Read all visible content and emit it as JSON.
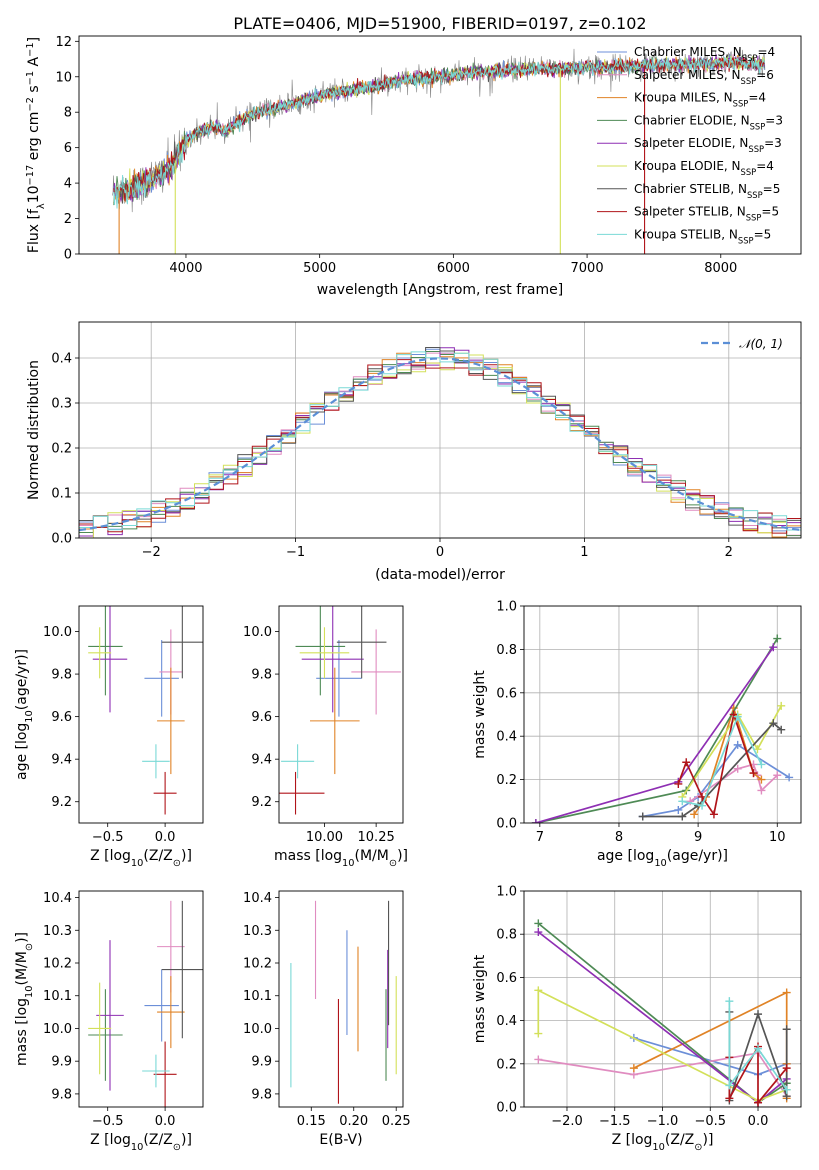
{
  "colors": {
    "Chabrier MILES": "#6c8fd8",
    "Salpeter MILES": "#e08cc0",
    "Kroupa MILES": "#e08326",
    "Chabrier ELODIE": "#4e8a55",
    "Salpeter ELODIE": "#8e2fb3",
    "Kroupa ELODIE": "#d3e05a",
    "Chabrier STELIB": "#555555",
    "Salpeter STELIB": "#b0141a",
    "Kroupa STELIB": "#7ad9d6"
  },
  "chart_data": [
    {
      "id": "spectrum",
      "type": "line",
      "title": "PLATE=0406, MJD=51900, FIBERID=0197, z=0.102",
      "xlabel": "wavelength [Angstrom, rest frame]",
      "ylabel": "Flux [f",
      "ylabel_sub": "λ",
      "ylabel_rest": "10",
      "ylabel_exp": "−17",
      "ylabel_tail": " erg cm",
      "ylabel_tail_exp": "−2",
      "ylabel_tail2": " s",
      "ylabel_tail2_exp": "−1",
      "ylabel_tail3": " A",
      "ylabel_tail3_exp": "−1",
      "ylabel_end": "]",
      "xlim": [
        3200,
        8600
      ],
      "ylim": [
        0,
        12.3
      ],
      "xticks": [
        "4000",
        "5000",
        "6000",
        "7000",
        "8000"
      ],
      "yticks": [
        "0",
        "2",
        "4",
        "6",
        "8",
        "10",
        "12"
      ],
      "data_color": "#808080",
      "continuum": {
        "x": [
          3450,
          3600,
          3700,
          3800,
          3900,
          4000,
          4100,
          4200,
          4300,
          4400,
          4500,
          4700,
          4900,
          5100,
          5300,
          5500,
          5700,
          5900,
          6100,
          6300,
          6500,
          6700,
          6900,
          7100,
          7300,
          7500,
          7700,
          7900,
          8100,
          8300
        ],
        "y": [
          3.5,
          3.7,
          4.0,
          4.5,
          5.0,
          6.4,
          6.9,
          7.2,
          6.9,
          7.5,
          7.9,
          8.3,
          8.7,
          9.1,
          9.3,
          9.6,
          9.9,
          10.0,
          10.2,
          10.3,
          10.4,
          10.45,
          10.5,
          10.55,
          10.6,
          10.65,
          10.7,
          10.75,
          10.8,
          10.7
        ]
      },
      "legend": [
        {
          "base": "Chabrier MILES, N",
          "sub": "SSP",
          "tail": "=4"
        },
        {
          "base": "Salpeter MILES, N",
          "sub": "SSP",
          "tail": "=6"
        },
        {
          "base": "Kroupa MILES, N",
          "sub": "SSP",
          "tail": "=4"
        },
        {
          "base": "Chabrier ELODIE, N",
          "sub": "SSP",
          "tail": "=3"
        },
        {
          "base": "Salpeter ELODIE, N",
          "sub": "SSP",
          "tail": "=3"
        },
        {
          "base": "Kroupa ELODIE, N",
          "sub": "SSP",
          "tail": "=4"
        },
        {
          "base": "Chabrier STELIB, N",
          "sub": "SSP",
          "tail": "=5"
        },
        {
          "base": "Salpeter STELIB, N",
          "sub": "SSP",
          "tail": "=5"
        },
        {
          "base": "Kroupa STELIB, N",
          "sub": "SSP",
          "tail": "=5"
        }
      ]
    },
    {
      "id": "residuals",
      "type": "line",
      "xlabel": "(data-model)/error",
      "ylabel": "Normed distribution",
      "xlim": [
        -2.5,
        2.5
      ],
      "ylim": [
        0,
        0.48
      ],
      "xticks": [
        "−2",
        "−1",
        "0",
        "1",
        "2"
      ],
      "yticks": [
        "0.0",
        "0.1",
        "0.2",
        "0.3",
        "0.4"
      ],
      "grid": true,
      "legend": "𝒩(0, 1)",
      "legend_position": "top-right",
      "bin_width": 0.1,
      "bins_start": -2.5,
      "gaussian_color": "#5b8fd6"
    },
    {
      "id": "age_vs_Z",
      "type": "scatter",
      "xlabel": "Z [log",
      "xlabel_sub": "10",
      "xlabel_tail": "(Z/Z",
      "xlabel_sun": "⊙",
      "xlabel_end": ")]",
      "ylabel": "age  [log",
      "ylabel_sub": "10",
      "ylabel_tail": "(age/yr)]",
      "xlim": [
        -0.75,
        0.33
      ],
      "ylim": [
        9.1,
        10.12
      ],
      "xticks": [
        "−0.5",
        "0.0"
      ],
      "yticks": [
        "9.2",
        "9.4",
        "9.6",
        "9.8",
        "10.0"
      ],
      "points": [
        {
          "model": "Chabrier MILES",
          "x": -0.03,
          "xerr": 0.15,
          "y": 9.78,
          "yerr": 0.18
        },
        {
          "model": "Salpeter MILES",
          "x": 0.05,
          "xerr": 0.1,
          "y": 9.81,
          "yerr": 0.2
        },
        {
          "model": "Kroupa MILES",
          "x": 0.05,
          "xerr": 0.12,
          "y": 9.58,
          "yerr": 0.25
        },
        {
          "model": "Chabrier ELODIE",
          "x": -0.52,
          "xerr": 0.15,
          "y": 9.93,
          "yerr": 0.23
        },
        {
          "model": "Salpeter ELODIE",
          "x": -0.48,
          "xerr": 0.15,
          "y": 9.87,
          "yerr": 0.25
        },
        {
          "model": "Kroupa ELODIE",
          "x": -0.57,
          "xerr": 0.1,
          "y": 9.9,
          "yerr": 0.12
        },
        {
          "model": "Chabrier STELIB",
          "x": 0.15,
          "xerr": 0.18,
          "y": 9.95,
          "yerr": 0.17
        },
        {
          "model": "Salpeter STELIB",
          "x": 0.0,
          "xerr": 0.1,
          "y": 9.24,
          "yerr": 0.1
        },
        {
          "model": "Kroupa STELIB",
          "x": -0.08,
          "xerr": 0.12,
          "y": 9.39,
          "yerr": 0.08
        }
      ]
    },
    {
      "id": "age_vs_mass",
      "type": "scatter",
      "xlabel": "mass [log",
      "xlabel_sub": "10",
      "xlabel_tail": "(M/M",
      "xlabel_sun": "⊙",
      "xlabel_end": ")]",
      "xlim": [
        9.78,
        10.38
      ],
      "ylim": [
        9.1,
        10.12
      ],
      "xticks": [
        "10.00",
        "10.25"
      ],
      "yticks": [
        "9.2",
        "9.4",
        "9.6",
        "9.8",
        "10.0"
      ],
      "points": [
        {
          "model": "Chabrier MILES",
          "x": 10.07,
          "xerr": 0.11,
          "y": 9.78,
          "yerr": 0.18
        },
        {
          "model": "Salpeter MILES",
          "x": 10.25,
          "xerr": 0.12,
          "y": 9.81,
          "yerr": 0.2
        },
        {
          "model": "Kroupa MILES",
          "x": 10.05,
          "xerr": 0.12,
          "y": 9.58,
          "yerr": 0.25
        },
        {
          "model": "Chabrier ELODIE",
          "x": 9.98,
          "xerr": 0.12,
          "y": 9.93,
          "yerr": 0.23
        },
        {
          "model": "Salpeter ELODIE",
          "x": 10.04,
          "xerr": 0.15,
          "y": 9.87,
          "yerr": 0.25
        },
        {
          "model": "Kroupa ELODIE",
          "x": 10.0,
          "xerr": 0.12,
          "y": 9.9,
          "yerr": 0.12
        },
        {
          "model": "Chabrier STELIB",
          "x": 10.18,
          "xerr": 0.12,
          "y": 9.95,
          "yerr": 0.17
        },
        {
          "model": "Salpeter STELIB",
          "x": 9.86,
          "xerr": 0.14,
          "y": 9.24,
          "yerr": 0.1
        },
        {
          "model": "Kroupa STELIB",
          "x": 9.87,
          "xerr": 0.08,
          "y": 9.39,
          "yerr": 0.08
        }
      ]
    },
    {
      "id": "weight_vs_age",
      "type": "line",
      "xlabel": "age  [log",
      "xlabel_sub": "10",
      "xlabel_tail": "(age/yr)]",
      "ylabel": "mass weight",
      "xlim": [
        6.8,
        10.3
      ],
      "ylim": [
        0,
        1.0
      ],
      "xticks": [
        "7",
        "8",
        "9",
        "10"
      ],
      "yticks": [
        "0.0",
        "0.2",
        "0.4",
        "0.6",
        "0.8",
        "1.0"
      ],
      "grid": true,
      "series": [
        {
          "model": "Chabrier MILES",
          "x": [
            8.3,
            8.75,
            9.0,
            9.5,
            10.15
          ],
          "y": [
            0.03,
            0.06,
            0.12,
            0.36,
            0.21
          ]
        },
        {
          "model": "Salpeter MILES",
          "x": [
            8.9,
            9.5,
            9.7,
            9.75,
            9.8,
            10.0
          ],
          "y": [
            0.1,
            0.25,
            0.27,
            0.22,
            0.15,
            0.22
          ]
        },
        {
          "model": "Kroupa MILES",
          "x": [
            8.95,
            9.1,
            9.45,
            9.7,
            9.8
          ],
          "y": [
            0.04,
            0.12,
            0.53,
            0.23,
            0.2
          ]
        },
        {
          "model": "Chabrier ELODIE",
          "x": [
            6.95,
            8.85,
            10.0
          ],
          "y": [
            0.0,
            0.15,
            0.85
          ]
        },
        {
          "model": "Salpeter ELODIE",
          "x": [
            6.95,
            8.75,
            9.95
          ],
          "y": [
            0.0,
            0.19,
            0.81
          ]
        },
        {
          "model": "Kroupa ELODIE",
          "x": [
            8.8,
            9.5,
            9.75,
            10.05
          ],
          "y": [
            0.12,
            0.5,
            0.34,
            0.54
          ]
        },
        {
          "model": "Chabrier STELIB",
          "x": [
            8.3,
            8.8,
            9.0,
            9.95,
            10.05
          ],
          "y": [
            0.03,
            0.03,
            0.08,
            0.46,
            0.43
          ]
        },
        {
          "model": "Salpeter STELIB",
          "x": [
            8.75,
            8.85,
            9.05,
            9.2,
            9.45,
            9.7
          ],
          "y": [
            0.18,
            0.28,
            0.12,
            0.04,
            0.5,
            0.23
          ]
        },
        {
          "model": "Kroupa STELIB",
          "x": [
            8.8,
            9.05,
            9.5,
            9.8
          ],
          "y": [
            0.1,
            0.08,
            0.49,
            0.27
          ]
        }
      ]
    },
    {
      "id": "mass_vs_Z",
      "type": "scatter",
      "xlabel": "Z [log",
      "xlabel_sub": "10",
      "xlabel_tail": "(Z/Z",
      "xlabel_sun": "⊙",
      "xlabel_end": ")]",
      "ylabel": "mass [log",
      "ylabel_sub": "10",
      "ylabel_tail": "(M/M",
      "ylabel_sun": "⊙",
      "ylabel_end": ")]",
      "xlim": [
        -0.75,
        0.33
      ],
      "ylim": [
        9.76,
        10.42
      ],
      "xticks": [
        "−0.5",
        "0.0"
      ],
      "yticks": [
        "9.8",
        "9.9",
        "10.0",
        "10.1",
        "10.2",
        "10.3",
        "10.4"
      ],
      "points": [
        {
          "model": "Chabrier MILES",
          "x": -0.03,
          "xerr": 0.15,
          "y": 10.07,
          "yerr": 0.11
        },
        {
          "model": "Salpeter MILES",
          "x": 0.05,
          "xerr": 0.12,
          "y": 10.25,
          "yerr": 0.14
        },
        {
          "model": "Kroupa MILES",
          "x": 0.05,
          "xerr": 0.12,
          "y": 10.05,
          "yerr": 0.11
        },
        {
          "model": "Chabrier ELODIE",
          "x": -0.52,
          "xerr": 0.15,
          "y": 9.98,
          "yerr": 0.14
        },
        {
          "model": "Salpeter ELODIE",
          "x": -0.48,
          "xerr": 0.12,
          "y": 10.04,
          "yerr": 0.23
        },
        {
          "model": "Kroupa ELODIE",
          "x": -0.57,
          "xerr": 0.1,
          "y": 10.0,
          "yerr": 0.14
        },
        {
          "model": "Chabrier STELIB",
          "x": 0.15,
          "xerr": 0.18,
          "y": 10.18,
          "yerr": 0.21
        },
        {
          "model": "Salpeter STELIB",
          "x": 0.0,
          "xerr": 0.1,
          "y": 9.86,
          "yerr": 0.1
        },
        {
          "model": "Kroupa STELIB",
          "x": -0.08,
          "xerr": 0.12,
          "y": 9.87,
          "yerr": 0.05
        }
      ]
    },
    {
      "id": "mass_vs_EBV",
      "type": "scatter",
      "xlabel": "E(B-V)",
      "xlim": [
        0.112,
        0.258
      ],
      "ylim": [
        9.76,
        10.42
      ],
      "xticks": [
        "0.15",
        "0.20",
        "0.25"
      ],
      "yticks": [
        "9.8",
        "9.9",
        "10.0",
        "10.1",
        "10.2",
        "10.3",
        "10.4"
      ],
      "points": [
        {
          "model": "Chabrier MILES",
          "x": 0.192,
          "xerr": 0.0,
          "y": 10.14,
          "yerr": 0.16
        },
        {
          "model": "Salpeter MILES",
          "x": 0.155,
          "xerr": 0.0,
          "y": 10.24,
          "yerr": 0.15
        },
        {
          "model": "Kroupa MILES",
          "x": 0.205,
          "xerr": 0.0,
          "y": 10.09,
          "yerr": 0.16
        },
        {
          "model": "Chabrier ELODIE",
          "x": 0.238,
          "xerr": 0.0,
          "y": 9.98,
          "yerr": 0.14
        },
        {
          "model": "Salpeter ELODIE",
          "x": 0.24,
          "xerr": 0.0,
          "y": 10.09,
          "yerr": 0.15
        },
        {
          "model": "Kroupa ELODIE",
          "x": 0.25,
          "xerr": 0.0,
          "y": 10.01,
          "yerr": 0.15
        },
        {
          "model": "Chabrier STELIB",
          "x": 0.241,
          "xerr": 0.0,
          "y": 10.2,
          "yerr": 0.19
        },
        {
          "model": "Salpeter STELIB",
          "x": 0.182,
          "xerr": 0.0,
          "y": 9.93,
          "yerr": 0.16
        },
        {
          "model": "Kroupa STELIB",
          "x": 0.126,
          "xerr": 0.0,
          "y": 10.01,
          "yerr": 0.19
        }
      ]
    },
    {
      "id": "weight_vs_Z",
      "type": "line",
      "xlabel": "Z [log",
      "xlabel_sub": "10",
      "xlabel_tail": "(Z/Z",
      "xlabel_sun": "⊙",
      "xlabel_end": ")]",
      "ylabel": "mass weight",
      "xlim": [
        -2.45,
        0.45
      ],
      "ylim": [
        0,
        1.0
      ],
      "xticks": [
        "−2.0",
        "−1.5",
        "−1.0",
        "−0.5",
        "0.0"
      ],
      "yticks": [
        "0.0",
        "0.2",
        "0.4",
        "0.6",
        "0.8",
        "1.0"
      ],
      "grid": true,
      "series": [
        {
          "model": "Chabrier MILES",
          "x": [
            -1.3,
            0.0,
            0.3
          ],
          "y": [
            0.32,
            0.15,
            0.2
          ]
        },
        {
          "model": "Salpeter MILES",
          "x": [
            -2.3,
            -1.3,
            0.0,
            0.3
          ],
          "y": [
            0.22,
            0.15,
            0.25,
            0.05
          ]
        },
        {
          "model": "Kroupa MILES",
          "x": [
            -1.3,
            0.3,
            0.3,
            0.3
          ],
          "y": [
            0.18,
            0.53,
            0.2,
            0.04
          ]
        },
        {
          "model": "Chabrier ELODIE",
          "x": [
            -2.3,
            0.0,
            0.3
          ],
          "y": [
            0.85,
            0.02,
            0.11
          ]
        },
        {
          "model": "Salpeter ELODIE",
          "x": [
            -2.3,
            0.0,
            0.3
          ],
          "y": [
            0.81,
            0.02,
            0.13
          ]
        },
        {
          "model": "Kroupa ELODIE",
          "x": [
            -2.3,
            -2.3,
            0.0,
            0.3
          ],
          "y": [
            0.34,
            0.54,
            0.03,
            0.08
          ]
        },
        {
          "model": "Chabrier STELIB",
          "x": [
            -0.3,
            -0.3,
            0.0,
            0.3,
            0.3
          ],
          "y": [
            0.44,
            0.03,
            0.43,
            0.05,
            0.36
          ]
        },
        {
          "model": "Salpeter STELIB",
          "x": [
            -0.3,
            -0.3,
            0.0,
            0.0,
            0.3
          ],
          "y": [
            0.23,
            0.04,
            0.28,
            0.02,
            0.18
          ]
        },
        {
          "model": "Kroupa STELIB",
          "x": [
            -0.3,
            -0.3,
            0.0,
            0.3
          ],
          "y": [
            0.49,
            0.1,
            0.27,
            0.08
          ]
        }
      ]
    }
  ]
}
